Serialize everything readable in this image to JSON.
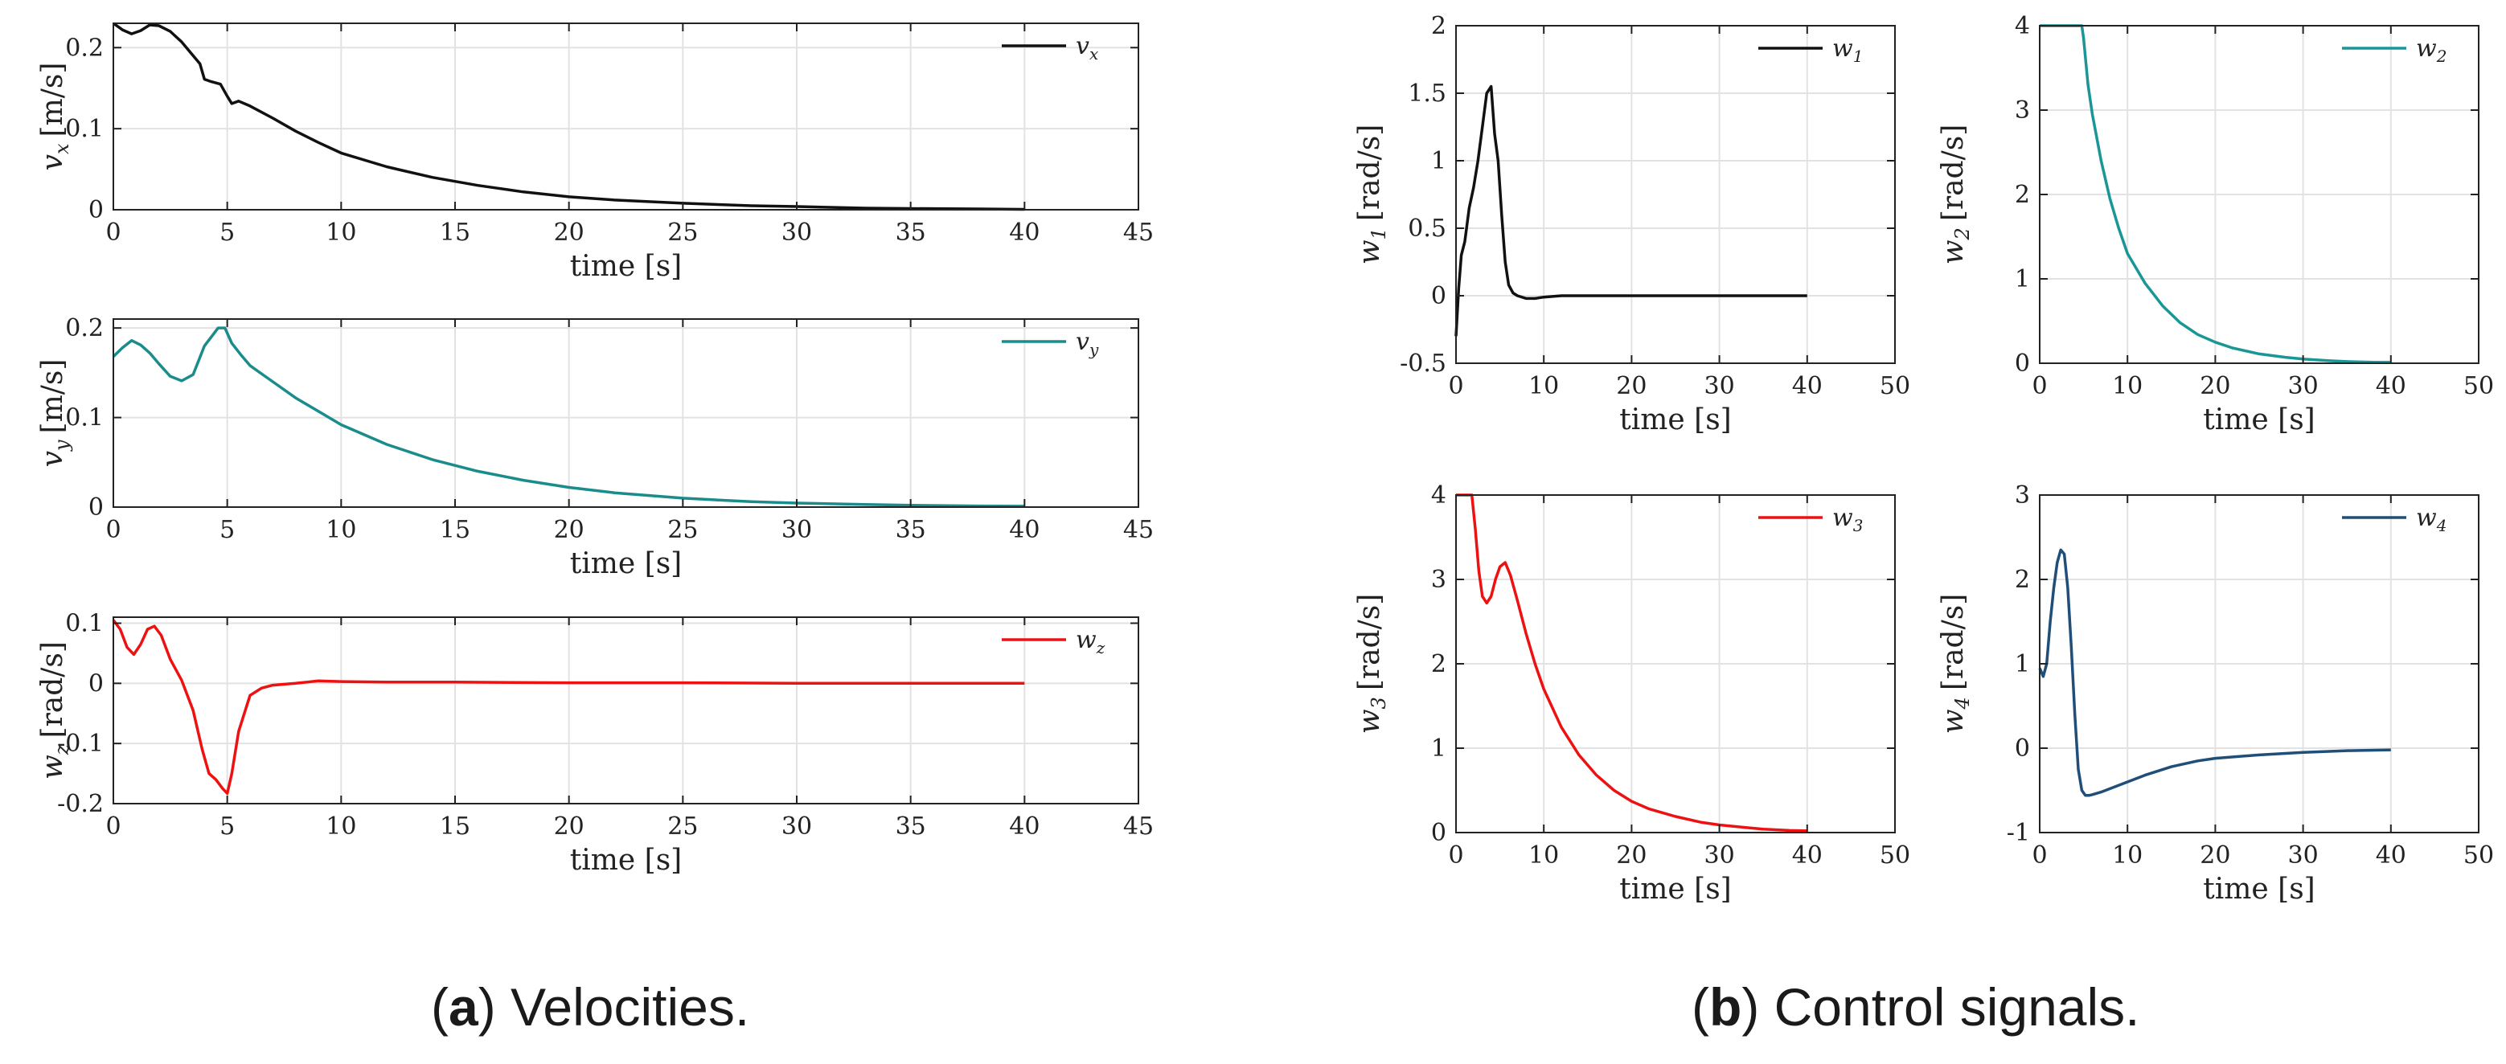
{
  "captions": {
    "a": {
      "letter": "a",
      "paren_open": "(",
      "paren_close": ")",
      "text": " Velocities."
    },
    "b": {
      "letter": "b",
      "paren_open": "(",
      "paren_close": ")",
      "text": " Control signals."
    }
  },
  "chart_data": [
    {
      "id": "vx",
      "type": "line",
      "group": "a",
      "ylabel_sym": "v",
      "ylabel_sub": "x",
      "ylabel_unit": "[m/s]",
      "xlabel": "time [s]",
      "xlim": [
        0,
        45
      ],
      "ylim": [
        0,
        0.23
      ],
      "xticks": [
        0,
        5,
        10,
        15,
        20,
        25,
        30,
        35,
        40,
        45
      ],
      "yticks": [
        0,
        0.1,
        0.2
      ],
      "ytick_labels": [
        "0",
        "0.1",
        "0.2"
      ],
      "grid": true,
      "legend_position": "top-right",
      "color": "#111111",
      "series": [
        {
          "name": "v_x",
          "sym": "v",
          "sub": "x",
          "x": [
            0,
            0.4,
            0.8,
            1.2,
            1.6,
            2.0,
            2.5,
            3.0,
            3.5,
            3.8,
            4.0,
            4.3,
            4.7,
            5.0,
            5.2,
            5.5,
            6,
            7,
            8,
            9,
            10,
            12,
            14,
            16,
            18,
            20,
            22,
            25,
            28,
            30,
            33,
            35,
            38,
            40
          ],
          "y": [
            0.23,
            0.222,
            0.217,
            0.221,
            0.228,
            0.227,
            0.22,
            0.207,
            0.19,
            0.18,
            0.161,
            0.158,
            0.155,
            0.14,
            0.131,
            0.134,
            0.128,
            0.113,
            0.097,
            0.083,
            0.07,
            0.053,
            0.04,
            0.03,
            0.022,
            0.016,
            0.012,
            0.008,
            0.005,
            0.004,
            0.002,
            0.0015,
            0.001,
            0.0005
          ]
        }
      ]
    },
    {
      "id": "vy",
      "type": "line",
      "group": "a",
      "ylabel_sym": "v",
      "ylabel_sub": "y",
      "ylabel_unit": "[m/s]",
      "xlabel": "time [s]",
      "xlim": [
        0,
        45
      ],
      "ylim": [
        0,
        0.21
      ],
      "xticks": [
        0,
        5,
        10,
        15,
        20,
        25,
        30,
        35,
        40,
        45
      ],
      "yticks": [
        0,
        0.1,
        0.2
      ],
      "ytick_labels": [
        "0",
        "0.1",
        "0.2"
      ],
      "grid": true,
      "legend_position": "top-right",
      "color": "#1a8c8c",
      "series": [
        {
          "name": "v_y",
          "sym": "v",
          "sub": "y",
          "x": [
            0,
            0.4,
            0.8,
            1.2,
            1.6,
            2.0,
            2.5,
            3.0,
            3.5,
            4.0,
            4.3,
            4.6,
            4.9,
            5.2,
            5.6,
            6,
            7,
            8,
            9,
            10,
            12,
            14,
            16,
            18,
            20,
            22,
            25,
            28,
            30,
            33,
            35,
            38,
            40
          ],
          "y": [
            0.168,
            0.178,
            0.186,
            0.181,
            0.172,
            0.16,
            0.146,
            0.141,
            0.148,
            0.18,
            0.19,
            0.2,
            0.2,
            0.183,
            0.17,
            0.158,
            0.14,
            0.122,
            0.107,
            0.092,
            0.07,
            0.053,
            0.04,
            0.03,
            0.022,
            0.016,
            0.01,
            0.006,
            0.0045,
            0.003,
            0.002,
            0.0013,
            0.001
          ]
        }
      ]
    },
    {
      "id": "wz",
      "type": "line",
      "group": "a",
      "ylabel_sym": "w",
      "ylabel_sub": "z",
      "ylabel_unit": "[rad/s]",
      "xlabel": "time [s]",
      "xlim": [
        0,
        45
      ],
      "ylim": [
        -0.2,
        0.11
      ],
      "xticks": [
        0,
        5,
        10,
        15,
        20,
        25,
        30,
        35,
        40,
        45
      ],
      "yticks": [
        -0.2,
        -0.1,
        0,
        0.1
      ],
      "ytick_labels": [
        "-0.2",
        "-0.1",
        "0",
        "0.1"
      ],
      "grid": true,
      "legend_position": "top-right",
      "color": "#ee1111",
      "series": [
        {
          "name": "w_z",
          "sym": "w",
          "sub": "z",
          "x": [
            0,
            0.3,
            0.6,
            0.9,
            1.2,
            1.5,
            1.8,
            2.1,
            2.5,
            3.0,
            3.5,
            3.9,
            4.2,
            4.5,
            4.8,
            5.0,
            5.2,
            5.5,
            6,
            6.5,
            7,
            8,
            9,
            10,
            12,
            15,
            20,
            25,
            30,
            35,
            40
          ],
          "y": [
            0.105,
            0.09,
            0.06,
            0.048,
            0.065,
            0.09,
            0.095,
            0.08,
            0.04,
            0.005,
            -0.045,
            -0.11,
            -0.15,
            -0.16,
            -0.175,
            -0.183,
            -0.15,
            -0.08,
            -0.02,
            -0.008,
            -0.003,
            0,
            0.004,
            0.003,
            0.002,
            0.002,
            0.001,
            0.001,
            0,
            0,
            0
          ]
        }
      ]
    },
    {
      "id": "w1",
      "type": "line",
      "group": "b",
      "ylabel_sym": "w",
      "ylabel_sub": "1",
      "ylabel_unit": "[rad/s]",
      "xlabel": "time [s]",
      "xlim": [
        0,
        50
      ],
      "ylim": [
        -0.5,
        2
      ],
      "xticks": [
        0,
        10,
        20,
        30,
        40,
        50
      ],
      "yticks": [
        -0.5,
        0,
        0.5,
        1,
        1.5,
        2
      ],
      "ytick_labels": [
        "-0.5",
        "0",
        "0.5",
        "1",
        "1.5",
        "2"
      ],
      "grid": true,
      "legend_position": "top-right",
      "color": "#111111",
      "series": [
        {
          "name": "w_1",
          "sym": "w",
          "sub": "1",
          "x": [
            0,
            0.3,
            0.6,
            1.0,
            1.5,
            2.0,
            2.5,
            3.0,
            3.5,
            4.0,
            4.4,
            4.8,
            5.2,
            5.6,
            6,
            6.5,
            7,
            8,
            9,
            10,
            12,
            15,
            20,
            25,
            30,
            35,
            40
          ],
          "y": [
            -0.3,
            0.05,
            0.3,
            0.4,
            0.65,
            0.8,
            1.0,
            1.25,
            1.5,
            1.55,
            1.2,
            1.0,
            0.6,
            0.25,
            0.08,
            0.02,
            0.0,
            -0.02,
            -0.02,
            -0.01,
            0,
            0,
            0,
            0,
            0,
            0,
            0
          ]
        }
      ]
    },
    {
      "id": "w2",
      "type": "line",
      "group": "b",
      "ylabel_sym": "w",
      "ylabel_sub": "2",
      "ylabel_unit": "[rad/s]",
      "xlabel": "time [s]",
      "xlim": [
        0,
        50
      ],
      "ylim": [
        0,
        4
      ],
      "xticks": [
        0,
        10,
        20,
        30,
        40,
        50
      ],
      "yticks": [
        0,
        1,
        2,
        3,
        4
      ],
      "ytick_labels": [
        "0",
        "1",
        "2",
        "3",
        "4"
      ],
      "grid": true,
      "legend_position": "top-right",
      "color": "#1a9696",
      "series": [
        {
          "name": "w_2",
          "sym": "w",
          "sub": "2",
          "x": [
            0,
            4.8,
            5.0,
            5.5,
            6,
            7,
            8,
            9,
            10,
            12,
            14,
            16,
            18,
            20,
            22,
            25,
            28,
            30,
            33,
            35,
            38,
            40
          ],
          "y": [
            4,
            4,
            3.85,
            3.3,
            2.95,
            2.4,
            1.95,
            1.6,
            1.3,
            0.95,
            0.68,
            0.48,
            0.34,
            0.25,
            0.18,
            0.11,
            0.07,
            0.05,
            0.03,
            0.02,
            0.012,
            0.01
          ]
        }
      ]
    },
    {
      "id": "w3",
      "type": "line",
      "group": "b",
      "ylabel_sym": "w",
      "ylabel_sub": "3",
      "ylabel_unit": "[rad/s]",
      "xlabel": "time [s]",
      "xlim": [
        0,
        50
      ],
      "ylim": [
        0,
        4
      ],
      "xticks": [
        0,
        10,
        20,
        30,
        40,
        50
      ],
      "yticks": [
        0,
        1,
        2,
        3,
        4
      ],
      "ytick_labels": [
        "0",
        "1",
        "2",
        "3",
        "4"
      ],
      "grid": true,
      "legend_position": "top-right",
      "color": "#ee1111",
      "series": [
        {
          "name": "w_3",
          "sym": "w",
          "sub": "3",
          "x": [
            0,
            1.8,
            2.2,
            2.6,
            3.0,
            3.5,
            4.0,
            4.5,
            5.0,
            5.6,
            6.2,
            7,
            8,
            9,
            10,
            12,
            14,
            16,
            18,
            20,
            22,
            25,
            28,
            30,
            33,
            35,
            38,
            40
          ],
          "y": [
            4,
            4,
            3.6,
            3.1,
            2.8,
            2.72,
            2.8,
            3.0,
            3.15,
            3.2,
            3.05,
            2.75,
            2.35,
            2.0,
            1.7,
            1.25,
            0.92,
            0.68,
            0.5,
            0.37,
            0.28,
            0.19,
            0.12,
            0.09,
            0.06,
            0.04,
            0.025,
            0.02
          ]
        }
      ]
    },
    {
      "id": "w4",
      "type": "line",
      "group": "b",
      "ylabel_sym": "w",
      "ylabel_sub": "4",
      "ylabel_unit": "[rad/s]",
      "xlabel": "time [s]",
      "xlim": [
        0,
        50
      ],
      "ylim": [
        -1,
        3
      ],
      "xticks": [
        0,
        10,
        20,
        30,
        40,
        50
      ],
      "yticks": [
        -1,
        0,
        1,
        2,
        3
      ],
      "ytick_labels": [
        "-1",
        "0",
        "1",
        "2",
        "3"
      ],
      "grid": true,
      "legend_position": "top-right",
      "color": "#1f4e79",
      "series": [
        {
          "name": "w_4",
          "sym": "w",
          "sub": "4",
          "x": [
            0,
            0.4,
            0.8,
            1.2,
            1.6,
            2.0,
            2.4,
            2.8,
            3.2,
            3.6,
            4.0,
            4.4,
            4.8,
            5.2,
            5.6,
            6.0,
            7,
            8,
            10,
            12,
            15,
            18,
            20,
            25,
            30,
            35,
            40
          ],
          "y": [
            0.95,
            0.85,
            1.0,
            1.5,
            1.9,
            2.2,
            2.35,
            2.3,
            1.9,
            1.2,
            0.4,
            -0.25,
            -0.5,
            -0.56,
            -0.56,
            -0.55,
            -0.52,
            -0.48,
            -0.4,
            -0.32,
            -0.22,
            -0.15,
            -0.12,
            -0.08,
            -0.05,
            -0.03,
            -0.02
          ]
        }
      ]
    }
  ]
}
